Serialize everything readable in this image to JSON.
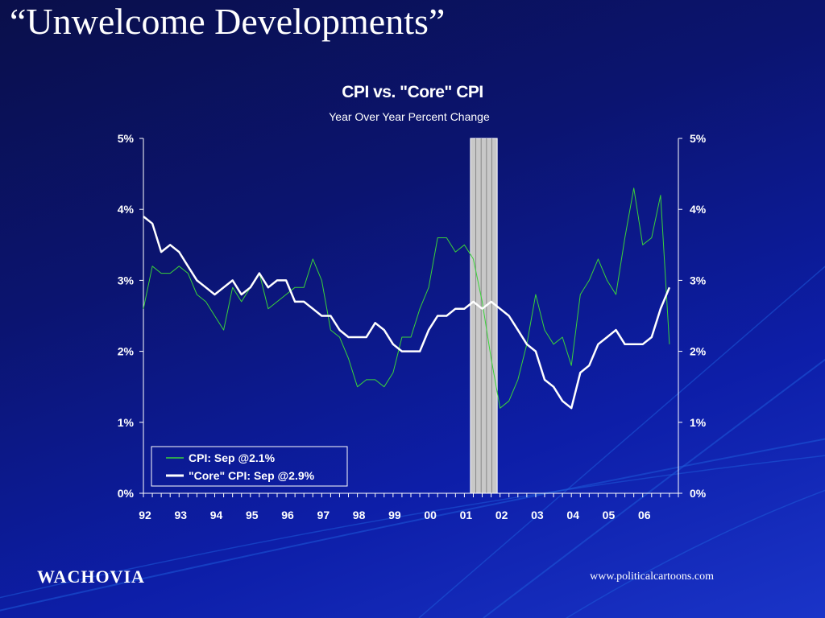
{
  "slide": {
    "title": "“Unwelcome Developments”",
    "logo": "WACHOVIA",
    "credit": "www.politicalcartoons.com"
  },
  "colors": {
    "cpi": "#3ad23a",
    "core": "#ffffff",
    "recession": "#c8c8c8",
    "text": "#ffffff"
  },
  "chart_data": {
    "type": "line",
    "title": "CPI vs. \"Core\" CPI",
    "subtitle": "Year Over Year Percent Change",
    "ylim": [
      0,
      5
    ],
    "y_ticks": [
      "0%",
      "1%",
      "2%",
      "3%",
      "4%",
      "5%"
    ],
    "x_tick_labels": [
      "92",
      "93",
      "94",
      "95",
      "96",
      "97",
      "98",
      "99",
      "00",
      "01",
      "02",
      "03",
      "04",
      "05",
      "06"
    ],
    "xlim": [
      1992.0,
      2007.0
    ],
    "grid": false,
    "legend_position": "bottom-left",
    "recession_band": [
      2001.17,
      2001.92
    ],
    "series": [
      {
        "name": "CPI: Sep @2.1%",
        "x": [
          1992.0,
          1992.25,
          1992.5,
          1992.75,
          1993.0,
          1993.25,
          1993.5,
          1993.75,
          1994.0,
          1994.25,
          1994.5,
          1994.75,
          1995.0,
          1995.25,
          1995.5,
          1995.75,
          1996.0,
          1996.25,
          1996.5,
          1996.75,
          1997.0,
          1997.25,
          1997.5,
          1997.75,
          1998.0,
          1998.25,
          1998.5,
          1998.75,
          1999.0,
          1999.25,
          1999.5,
          1999.75,
          2000.0,
          2000.25,
          2000.5,
          2000.75,
          2001.0,
          2001.25,
          2001.5,
          2001.75,
          2002.0,
          2002.25,
          2002.5,
          2002.75,
          2003.0,
          2003.25,
          2003.5,
          2003.75,
          2004.0,
          2004.25,
          2004.5,
          2004.75,
          2005.0,
          2005.25,
          2005.5,
          2005.75,
          2006.0,
          2006.25,
          2006.5,
          2006.75
        ],
        "values": [
          2.6,
          3.2,
          3.1,
          3.1,
          3.2,
          3.1,
          2.8,
          2.7,
          2.5,
          2.3,
          2.9,
          2.7,
          2.9,
          3.1,
          2.6,
          2.7,
          2.8,
          2.9,
          2.9,
          3.3,
          3.0,
          2.3,
          2.2,
          1.9,
          1.5,
          1.6,
          1.6,
          1.5,
          1.7,
          2.2,
          2.2,
          2.6,
          2.9,
          3.6,
          3.6,
          3.4,
          3.5,
          3.3,
          2.7,
          1.9,
          1.2,
          1.3,
          1.6,
          2.1,
          2.8,
          2.3,
          2.1,
          2.2,
          1.8,
          2.8,
          3.0,
          3.3,
          3.0,
          2.8,
          3.6,
          4.3,
          3.5,
          3.6,
          4.2,
          2.1
        ]
      },
      {
        "name": "\"Core\" CPI: Sep @2.9%",
        "x": [
          1992.0,
          1992.25,
          1992.5,
          1992.75,
          1993.0,
          1993.25,
          1993.5,
          1993.75,
          1994.0,
          1994.25,
          1994.5,
          1994.75,
          1995.0,
          1995.25,
          1995.5,
          1995.75,
          1996.0,
          1996.25,
          1996.5,
          1996.75,
          1997.0,
          1997.25,
          1997.5,
          1997.75,
          1998.0,
          1998.25,
          1998.5,
          1998.75,
          1999.0,
          1999.25,
          1999.5,
          1999.75,
          2000.0,
          2000.25,
          2000.5,
          2000.75,
          2001.0,
          2001.25,
          2001.5,
          2001.75,
          2002.0,
          2002.25,
          2002.5,
          2002.75,
          2003.0,
          2003.25,
          2003.5,
          2003.75,
          2004.0,
          2004.25,
          2004.5,
          2004.75,
          2005.0,
          2005.25,
          2005.5,
          2005.75,
          2006.0,
          2006.25,
          2006.5,
          2006.75
        ],
        "values": [
          3.9,
          3.8,
          3.4,
          3.5,
          3.4,
          3.2,
          3.0,
          2.9,
          2.8,
          2.9,
          3.0,
          2.8,
          2.9,
          3.1,
          2.9,
          3.0,
          3.0,
          2.7,
          2.7,
          2.6,
          2.5,
          2.5,
          2.3,
          2.2,
          2.2,
          2.2,
          2.4,
          2.3,
          2.1,
          2.0,
          2.0,
          2.0,
          2.3,
          2.5,
          2.5,
          2.6,
          2.6,
          2.7,
          2.6,
          2.7,
          2.6,
          2.5,
          2.3,
          2.1,
          2.0,
          1.6,
          1.5,
          1.3,
          1.2,
          1.7,
          1.8,
          2.1,
          2.2,
          2.3,
          2.1,
          2.1,
          2.1,
          2.2,
          2.6,
          2.9
        ]
      }
    ]
  }
}
